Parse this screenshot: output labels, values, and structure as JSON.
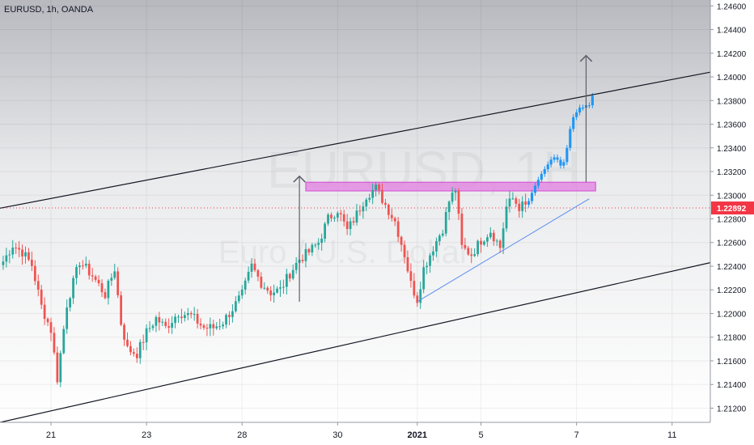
{
  "header": {
    "symbol_line": "EURUSD, 1h, OANDA"
  },
  "watermark": {
    "ticker": "EURUSD, 1H",
    "name": "Euro / U.S. Dollar"
  },
  "colors": {
    "bull": "#26a69a",
    "bear": "#ef5350",
    "projection": "#2196f3",
    "resistance_zone": "#e27de0",
    "trendline": "#5b8def",
    "channel": "#131722",
    "price_line": "#f23645",
    "arrow": "#5d606b"
  },
  "chart_data": {
    "type": "candlestick",
    "symbol": "EURUSD",
    "timeframe": "1h",
    "source": "OANDA",
    "ylim": [
      1.2108,
      1.2465
    ],
    "y_ticks": [
      "1.24600",
      "1.24400",
      "1.24200",
      "1.24000",
      "1.23800",
      "1.23600",
      "1.23400",
      "1.23200",
      "1.23000",
      "1.22800",
      "1.22600",
      "1.22400",
      "1.22200",
      "1.22000",
      "1.21800",
      "1.21600",
      "1.21400",
      "1.21200"
    ],
    "x_ticks": [
      {
        "label": "21",
        "i": 15
      },
      {
        "label": "23",
        "i": 45
      },
      {
        "label": "28",
        "i": 75
      },
      {
        "label": "30",
        "i": 105
      },
      {
        "label": "2021",
        "i": 130
      },
      {
        "label": "5",
        "i": 150
      },
      {
        "label": "7",
        "i": 180
      },
      {
        "label": "11",
        "i": 210
      }
    ],
    "x_range": [
      -1,
      222
    ],
    "current_price": 1.22892,
    "current_price_label": "1.22892",
    "anchors": [
      [
        0,
        1.2244
      ],
      [
        3,
        1.2258
      ],
      [
        6,
        1.2252
      ],
      [
        9,
        1.2241
      ],
      [
        12,
        1.2206
      ],
      [
        15,
        1.2186
      ],
      [
        17,
        1.2145
      ],
      [
        20,
        1.2208
      ],
      [
        24,
        1.2244
      ],
      [
        28,
        1.2232
      ],
      [
        32,
        1.2216
      ],
      [
        35,
        1.2238
      ],
      [
        37,
        1.2192
      ],
      [
        39,
        1.217
      ],
      [
        42,
        1.2166
      ],
      [
        45,
        1.2184
      ],
      [
        48,
        1.2196
      ],
      [
        51,
        1.2188
      ],
      [
        55,
        1.2201
      ],
      [
        59,
        1.2198
      ],
      [
        63,
        1.2188
      ],
      [
        66,
        1.2188
      ],
      [
        69,
        1.2193
      ],
      [
        72,
        1.2204
      ],
      [
        75,
        1.2216
      ],
      [
        78,
        1.224
      ],
      [
        81,
        1.2226
      ],
      [
        84,
        1.2218
      ],
      [
        87,
        1.222
      ],
      [
        90,
        1.2234
      ],
      [
        93,
        1.2246
      ],
      [
        96,
        1.2252
      ],
      [
        99,
        1.226
      ],
      [
        102,
        1.228
      ],
      [
        105,
        1.2288
      ],
      [
        108,
        1.227
      ],
      [
        111,
        1.2284
      ],
      [
        114,
        1.23
      ],
      [
        117,
        1.2306
      ],
      [
        120,
        1.2292
      ],
      [
        123,
        1.2278
      ],
      [
        126,
        1.225
      ],
      [
        128,
        1.2225
      ],
      [
        130,
        1.2212
      ],
      [
        132,
        1.2238
      ],
      [
        135,
        1.2256
      ],
      [
        138,
        1.2272
      ],
      [
        140,
        1.2295
      ],
      [
        142,
        1.2305
      ],
      [
        144,
        1.2256
      ],
      [
        147,
        1.225
      ],
      [
        150,
        1.2262
      ],
      [
        153,
        1.227
      ],
      [
        156,
        1.2256
      ],
      [
        158,
        1.229
      ],
      [
        160,
        1.2297
      ],
      [
        162,
        1.229
      ],
      [
        164,
        1.2292
      ]
    ],
    "projection": [
      [
        165,
        1.2295
      ],
      [
        166,
        1.2302
      ],
      [
        167,
        1.2308
      ],
      [
        168,
        1.2313
      ],
      [
        169,
        1.2318
      ],
      [
        170,
        1.2322
      ],
      [
        171,
        1.2326
      ],
      [
        172,
        1.233
      ],
      [
        173,
        1.2332
      ],
      [
        174,
        1.233
      ],
      [
        175,
        1.2325
      ],
      [
        176,
        1.2328
      ],
      [
        177,
        1.234
      ],
      [
        178,
        1.2356
      ],
      [
        179,
        1.2366
      ],
      [
        180,
        1.237
      ],
      [
        181,
        1.2374
      ],
      [
        182,
        1.2374
      ],
      [
        183,
        1.2376
      ],
      [
        184,
        1.2376
      ],
      [
        185,
        1.2384
      ]
    ],
    "channel_upper": [
      [
        -1,
        1.2289
      ],
      [
        222,
        1.2404
      ]
    ],
    "channel_lower": [
      [
        -1,
        1.2108
      ],
      [
        222,
        1.2243
      ]
    ],
    "support_trendline": [
      [
        130,
        1.221
      ],
      [
        184,
        1.2297
      ]
    ],
    "resistance_zone": {
      "i_start": 95,
      "i_end": 186,
      "y_low": 1.23036,
      "y_high": 1.2311
    },
    "arrows": [
      {
        "i": 93,
        "y_from": 1.221,
        "y_to": 1.2316
      },
      {
        "i": 183,
        "y_from": 1.2311,
        "y_to": 1.2418
      }
    ]
  }
}
